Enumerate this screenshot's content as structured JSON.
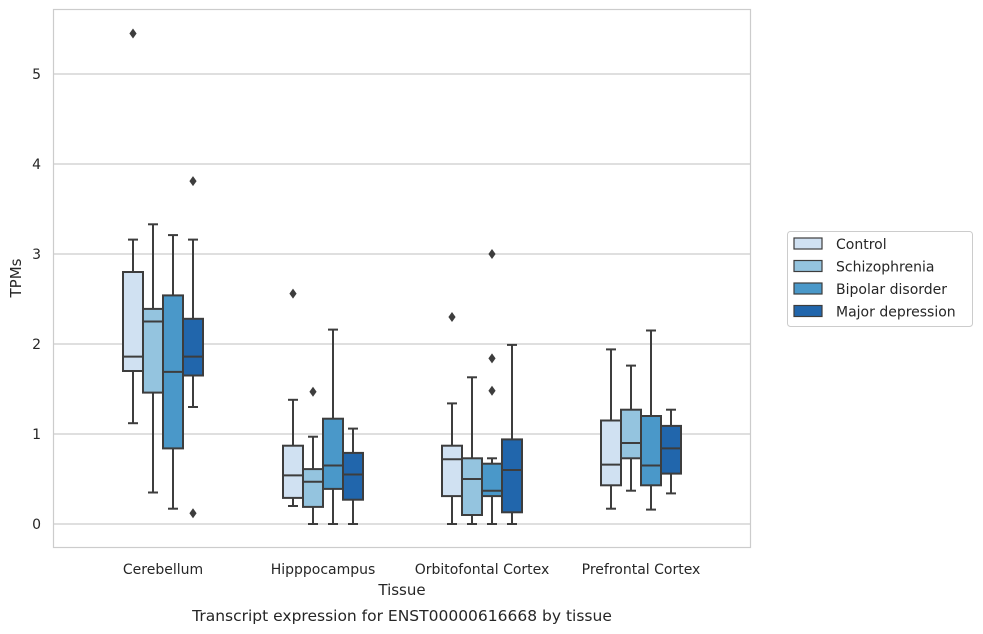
{
  "chart_data": {
    "type": "box",
    "title": "",
    "caption": "Transcript expression for ENST00000616668 by tissue",
    "xlabel": "Tissue",
    "ylabel": "TPMs",
    "ylim": [
      -0.27,
      5.72
    ],
    "yticks": [
      0,
      1,
      2,
      3,
      4,
      5
    ],
    "grid": "horizontal",
    "legend_position": "right",
    "categories": [
      "Cerebellum",
      "Hipppocampus",
      "Orbitofontal Cortex",
      "Prefrontal Cortex"
    ],
    "series": [
      {
        "name": "Control",
        "color": "#d0e1f2",
        "boxes": [
          {
            "whisker_low": 1.12,
            "q1": 1.7,
            "median": 1.86,
            "q3": 2.8,
            "whisker_high": 3.16,
            "outliers": [
              5.45
            ]
          },
          {
            "whisker_low": 0.2,
            "q1": 0.29,
            "median": 0.54,
            "q3": 0.87,
            "whisker_high": 1.38,
            "outliers": [
              2.56
            ]
          },
          {
            "whisker_low": 0.0,
            "q1": 0.31,
            "median": 0.72,
            "q3": 0.87,
            "whisker_high": 1.34,
            "outliers": [
              2.3
            ]
          },
          {
            "whisker_low": 0.17,
            "q1": 0.43,
            "median": 0.66,
            "q3": 1.15,
            "whisker_high": 1.94,
            "outliers": []
          }
        ]
      },
      {
        "name": "Schizophrenia",
        "color": "#94c4df",
        "boxes": [
          {
            "whisker_low": 0.35,
            "q1": 1.46,
            "median": 2.25,
            "q3": 2.39,
            "whisker_high": 3.33,
            "outliers": []
          },
          {
            "whisker_low": 0.0,
            "q1": 0.19,
            "median": 0.47,
            "q3": 0.61,
            "whisker_high": 0.97,
            "outliers": [
              1.47
            ]
          },
          {
            "whisker_low": 0.0,
            "q1": 0.1,
            "median": 0.5,
            "q3": 0.73,
            "whisker_high": 1.63,
            "outliers": []
          },
          {
            "whisker_low": 0.37,
            "q1": 0.73,
            "median": 0.9,
            "q3": 1.27,
            "whisker_high": 1.76,
            "outliers": []
          }
        ]
      },
      {
        "name": "Bipolar disorder",
        "color": "#4a98c9",
        "boxes": [
          {
            "whisker_low": 0.17,
            "q1": 0.84,
            "median": 1.69,
            "q3": 2.54,
            "whisker_high": 3.21,
            "outliers": []
          },
          {
            "whisker_low": 0.0,
            "q1": 0.39,
            "median": 0.65,
            "q3": 1.17,
            "whisker_high": 2.16,
            "outliers": []
          },
          {
            "whisker_low": 0.0,
            "q1": 0.31,
            "median": 0.37,
            "q3": 0.67,
            "whisker_high": 0.73,
            "outliers": [
              1.48,
              1.84,
              3.0
            ]
          },
          {
            "whisker_low": 0.16,
            "q1": 0.43,
            "median": 0.65,
            "q3": 1.2,
            "whisker_high": 2.15,
            "outliers": []
          }
        ]
      },
      {
        "name": "Major depression",
        "color": "#2166ac",
        "boxes": [
          {
            "whisker_low": 1.3,
            "q1": 1.65,
            "median": 1.86,
            "q3": 2.28,
            "whisker_high": 3.16,
            "outliers": [
              3.81,
              0.12
            ]
          },
          {
            "whisker_low": 0.0,
            "q1": 0.27,
            "median": 0.55,
            "q3": 0.79,
            "whisker_high": 1.06,
            "outliers": []
          },
          {
            "whisker_low": 0.0,
            "q1": 0.13,
            "median": 0.6,
            "q3": 0.94,
            "whisker_high": 1.99,
            "outliers": []
          },
          {
            "whisker_low": 0.34,
            "q1": 0.56,
            "median": 0.84,
            "q3": 1.09,
            "whisker_high": 1.27,
            "outliers": []
          }
        ]
      }
    ],
    "colors": {
      "grid": "#cccccc",
      "frame": "#cccccc",
      "box_edge": "#3d3d3d",
      "text": "#262626"
    }
  }
}
